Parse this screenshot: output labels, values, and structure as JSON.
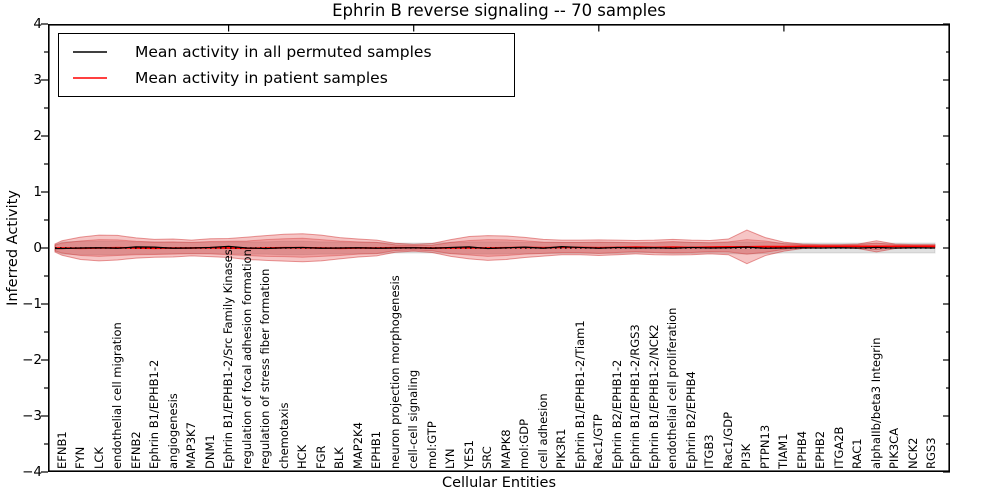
{
  "figure": {
    "window_background": "#ffffff"
  },
  "legend": {
    "items": [
      {
        "label": "Mean activity in all permuted samples",
        "color": "#000000"
      },
      {
        "label": "Mean activity in patient samples",
        "color": "#ff0000"
      }
    ]
  },
  "chart_data": {
    "type": "line",
    "title": "Ephrin B reverse signaling -- 70 samples",
    "xlabel": "Cellular Entities",
    "ylabel": "Inferred Activity",
    "ylim": [
      -4,
      4
    ],
    "yticks": [
      4,
      3,
      2,
      1,
      0,
      -1,
      -2,
      -3,
      -4
    ],
    "ytick_minor_step": 0.5,
    "xtick_marks_top": [
      10,
      20,
      30,
      40
    ],
    "grid": false,
    "legend_position": "upper left",
    "categories": [
      "EFNB1",
      "FYN",
      "LCK",
      "endothelial cell migration",
      "EFNB2",
      "Ephrin B1/EPHB1-2",
      "angiogenesis",
      "MAP3K7",
      "DNM1",
      "Ephrin B1/EPHB1-2/Src Family Kinases",
      "regulation of focal adhesion formation",
      "regulation of stress fiber formation",
      "chemotaxis",
      "HCK",
      "FGR",
      "BLK",
      "MAP2K4",
      "EPHB1",
      "neuron projection morphogenesis",
      "cell-cell signaling",
      "mol:GTP",
      "LYN",
      "YES1",
      "SRC",
      "MAPK8",
      "mol:GDP",
      "cell adhesion",
      "PIK3R1",
      "Ephrin B1/EPHB1-2/Tiam1",
      "Rac1/GTP",
      "Ephrin B2/EPHB1-2",
      "Ephrin B1/EPHB1-2/RGS3",
      "Ephrin B1/EPHB1-2/NCK2",
      "endothelial cell proliferation",
      "Ephrin B2/EPHB4",
      "ITGB3",
      "Rac1/GDP",
      "PI3K",
      "PTPN13",
      "TIAM1",
      "EPHB4",
      "EPHB2",
      "ITGA2B",
      "RAC1",
      "alphaIIb/beta3 Integrin",
      "PIK3CA",
      "NCK2",
      "RGS3"
    ],
    "series": [
      {
        "name": "Mean activity in all permuted samples",
        "color": "#000000",
        "style": "solid",
        "values": [
          -0.01,
          0.0,
          0.005,
          -0.005,
          0.02,
          0.015,
          -0.005,
          0.0,
          0.01,
          0.03,
          0.0,
          -0.01,
          0.005,
          0.01,
          -0.005,
          0.0,
          0.005,
          -0.005,
          0.0,
          0.005,
          -0.005,
          0.01,
          0.02,
          -0.01,
          0.005,
          0.015,
          -0.005,
          0.025,
          0.01,
          -0.005,
          0.01,
          0.0,
          0.005,
          -0.005,
          0.01,
          0.0,
          0.005,
          0.015,
          -0.005,
          0.0,
          0.005,
          0.0,
          0.005,
          0.0,
          0.01,
          0.0,
          0.005,
          0.0
        ]
      },
      {
        "name": "Mean activity in patient samples",
        "color": "#ff0000",
        "style": "solid",
        "values": [
          0.0,
          -0.005,
          0.0,
          0.005,
          0.0,
          -0.005,
          0.0,
          0.0,
          0.005,
          0.0,
          -0.005,
          0.0,
          0.005,
          0.005,
          0.0,
          -0.005,
          0.0,
          0.0,
          0.005,
          0.005,
          0.0,
          0.0,
          0.005,
          0.0,
          0.005,
          0.01,
          0.005,
          0.01,
          0.01,
          0.005,
          0.01,
          0.015,
          0.01,
          0.015,
          0.01,
          0.015,
          0.02,
          0.02,
          0.025,
          0.025,
          0.03,
          0.03,
          0.03,
          0.03,
          0.03,
          0.03,
          0.03,
          0.03
        ]
      },
      {
        "name": "zero reference",
        "color": "#000000",
        "style": "dotted",
        "values": [
          0,
          0,
          0,
          0,
          0,
          0,
          0,
          0,
          0,
          0,
          0,
          0,
          0,
          0,
          0,
          0,
          0,
          0,
          0,
          0,
          0,
          0,
          0,
          0,
          0,
          0,
          0,
          0,
          0,
          0,
          0,
          0,
          0,
          0,
          0,
          0,
          0,
          0,
          0,
          0,
          0,
          0,
          0,
          0,
          0,
          0,
          0,
          0
        ]
      }
    ],
    "bands": [
      {
        "name": "permuted samples spread",
        "center": "zero",
        "fill": "#000000",
        "fill_opacity": 0.12,
        "edge": "#000000",
        "edge_opacity": 0.1,
        "half_widths": [
          0.11,
          0.12,
          0.12,
          0.12,
          0.11,
          0.11,
          0.1,
          0.1,
          0.1,
          0.11,
          0.11,
          0.11,
          0.12,
          0.12,
          0.11,
          0.11,
          0.1,
          0.1,
          0.09,
          0.09,
          0.09,
          0.1,
          0.11,
          0.11,
          0.11,
          0.1,
          0.1,
          0.1,
          0.1,
          0.1,
          0.1,
          0.09,
          0.09,
          0.1,
          0.1,
          0.09,
          0.1,
          0.11,
          0.1,
          0.09,
          0.09,
          0.09,
          0.09,
          0.09,
          0.09,
          0.09,
          0.09,
          0.09
        ]
      },
      {
        "name": "patient samples spread (outer)",
        "center": "patient",
        "fill": "#e03030",
        "fill_opacity": 0.28,
        "edge": "#cc2222",
        "edge_opacity": 0.45,
        "half_widths": [
          0.13,
          0.2,
          0.23,
          0.22,
          0.18,
          0.16,
          0.16,
          0.14,
          0.16,
          0.17,
          0.2,
          0.22,
          0.24,
          0.25,
          0.23,
          0.19,
          0.16,
          0.14,
          0.08,
          0.06,
          0.08,
          0.15,
          0.2,
          0.22,
          0.21,
          0.18,
          0.15,
          0.13,
          0.13,
          0.14,
          0.13,
          0.12,
          0.13,
          0.14,
          0.13,
          0.12,
          0.14,
          0.3,
          0.16,
          0.08,
          0.04,
          0.03,
          0.03,
          0.04,
          0.1,
          0.04,
          0.03,
          0.03
        ]
      },
      {
        "name": "patient samples spread (inner)",
        "center": "patient",
        "fill": "#e03030",
        "fill_opacity": 0.25,
        "edge": "#cc2222",
        "edge_opacity": 0.35,
        "half_widths": [
          0.09,
          0.13,
          0.15,
          0.14,
          0.12,
          0.11,
          0.11,
          0.1,
          0.11,
          0.12,
          0.13,
          0.15,
          0.16,
          0.17,
          0.15,
          0.13,
          0.11,
          0.1,
          0.05,
          0.04,
          0.05,
          0.1,
          0.13,
          0.15,
          0.14,
          0.12,
          0.1,
          0.09,
          0.09,
          0.1,
          0.09,
          0.08,
          0.09,
          0.1,
          0.09,
          0.08,
          0.09,
          0.13,
          0.1,
          0.05,
          0.025,
          0.02,
          0.02,
          0.025,
          0.06,
          0.025,
          0.02,
          0.02
        ]
      }
    ]
  }
}
